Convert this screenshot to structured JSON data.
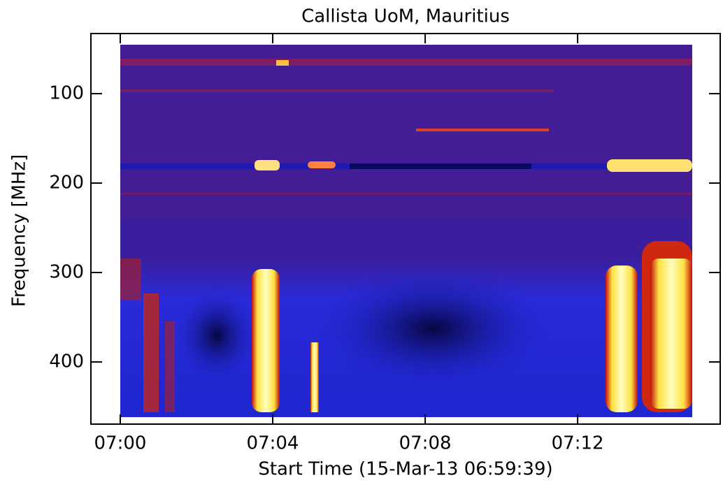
{
  "chart_data": {
    "type": "spectrogram",
    "title": "Callista UoM, Mauritius",
    "xlabel": "Start Time (15-Mar-13 06:59:39)",
    "ylabel": "Frequency [MHz]",
    "xlim": [
      -0.77,
      15.74
    ],
    "xticks": [
      {
        "value": 0,
        "label": "07:00"
      },
      {
        "value": 4,
        "label": "07:04"
      },
      {
        "value": 8,
        "label": "07:08"
      },
      {
        "value": 12,
        "label": "07:12"
      }
    ],
    "ylim": [
      469.5,
      32.8
    ],
    "yticks": [
      100,
      200,
      300,
      400
    ]
  }
}
